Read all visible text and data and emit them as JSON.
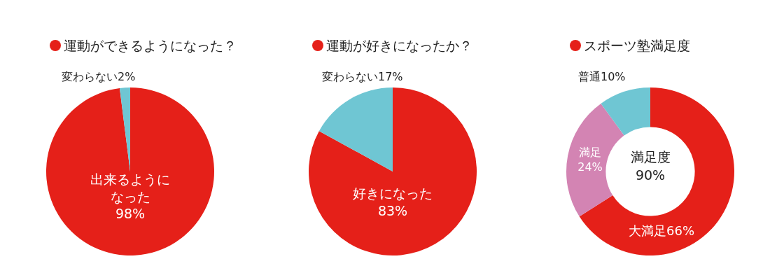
{
  "chart_data": [
    {
      "type": "pie",
      "title": "運動ができるようになった？",
      "categories": [
        "出来るようになった",
        "変わらない"
      ],
      "values": [
        98,
        2
      ],
      "colors": [
        "#e52019",
        "#6fc6d3"
      ],
      "value_labels": [
        "98%",
        "2%"
      ]
    },
    {
      "type": "pie",
      "title": "運動が好きになったか？",
      "categories": [
        "好きになった",
        "変わらない"
      ],
      "values": [
        83,
        17
      ],
      "colors": [
        "#e52019",
        "#6fc6d3"
      ],
      "value_labels": [
        "83%",
        "17%"
      ]
    },
    {
      "type": "donut",
      "title": "スポーツ塾満足度",
      "categories": [
        "大満足",
        "満足",
        "普通"
      ],
      "values": [
        66,
        24,
        10
      ],
      "colors": [
        "#e52019",
        "#d384b3",
        "#6fc6d3"
      ],
      "value_labels": [
        "66%",
        "24%",
        "10%"
      ],
      "annotations": [
        "満足度 90%"
      ]
    }
  ]
}
